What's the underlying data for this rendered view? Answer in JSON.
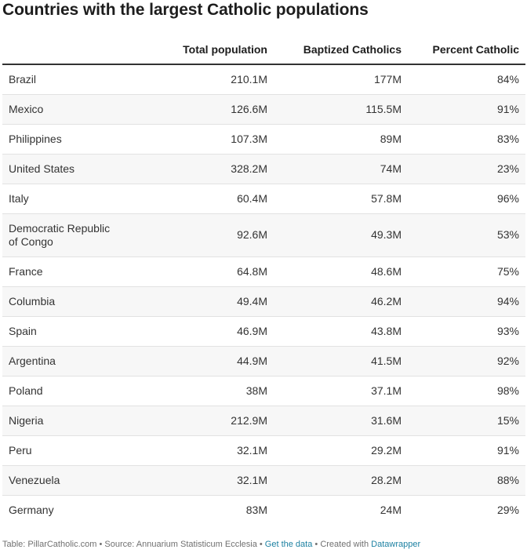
{
  "title": "Countries with the largest Catholic populations",
  "columns": {
    "country": "",
    "total": "Total population",
    "baptized": "Baptized Catholics",
    "percent": "Percent Catholic"
  },
  "footer": {
    "source_text": "Table: PillarCatholic.com • Source: Annuarium Statisticum Ecclesia •",
    "get_data": "Get the data",
    "sep": "•",
    "created_with": "Created with",
    "datawrapper": "Datawrapper"
  },
  "chart_data": {
    "type": "table",
    "title": "Countries with the largest Catholic populations",
    "columns": [
      "",
      "Total population",
      "Baptized Catholics",
      "Percent Catholic"
    ],
    "rows": [
      {
        "country": "Brazil",
        "total": "210.1M",
        "baptized": "177M",
        "percent": "84%"
      },
      {
        "country": "Mexico",
        "total": "126.6M",
        "baptized": "115.5M",
        "percent": "91%"
      },
      {
        "country": "Philippines",
        "total": "107.3M",
        "baptized": "89M",
        "percent": "83%"
      },
      {
        "country": "United States",
        "total": "328.2M",
        "baptized": "74M",
        "percent": "23%"
      },
      {
        "country": "Italy",
        "total": "60.4M",
        "baptized": "57.8M",
        "percent": "96%"
      },
      {
        "country": "Democratic Republic of Congo",
        "total": "92.6M",
        "baptized": "49.3M",
        "percent": "53%"
      },
      {
        "country": "France",
        "total": "64.8M",
        "baptized": "48.6M",
        "percent": "75%"
      },
      {
        "country": "Columbia",
        "total": "49.4M",
        "baptized": "46.2M",
        "percent": "94%"
      },
      {
        "country": "Spain",
        "total": "46.9M",
        "baptized": "43.8M",
        "percent": "93%"
      },
      {
        "country": "Argentina",
        "total": "44.9M",
        "baptized": "41.5M",
        "percent": "92%"
      },
      {
        "country": "Poland",
        "total": "38M",
        "baptized": "37.1M",
        "percent": "98%"
      },
      {
        "country": "Nigeria",
        "total": "212.9M",
        "baptized": "31.6M",
        "percent": "15%"
      },
      {
        "country": "Peru",
        "total": "32.1M",
        "baptized": "29.2M",
        "percent": "91%"
      },
      {
        "country": "Venezuela",
        "total": "32.1M",
        "baptized": "28.2M",
        "percent": "88%"
      },
      {
        "country": "Germany",
        "total": "83M",
        "baptized": "24M",
        "percent": "29%"
      }
    ]
  }
}
